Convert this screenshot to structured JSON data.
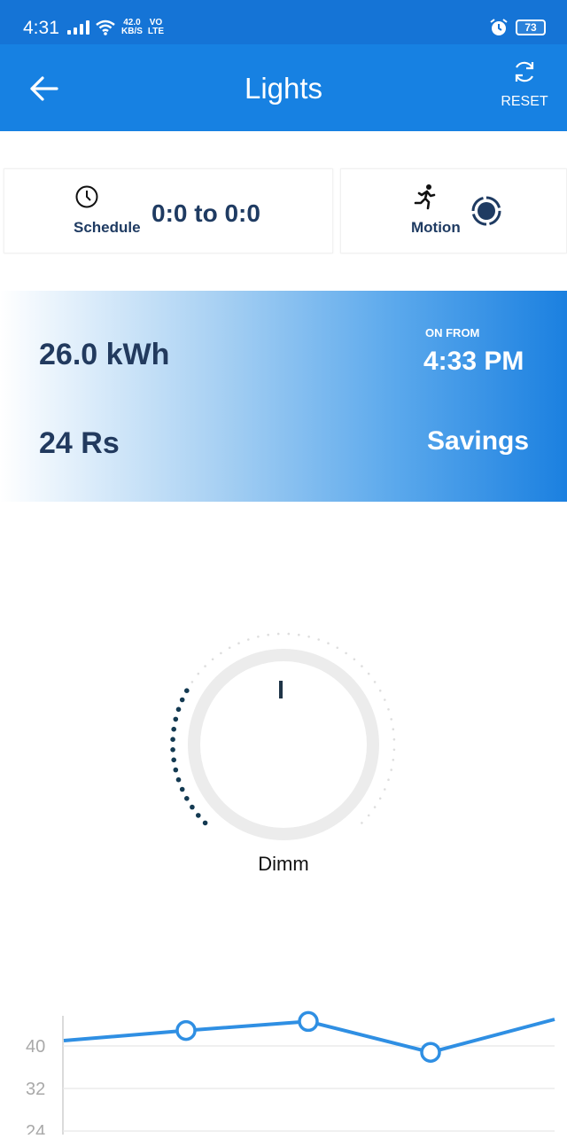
{
  "status_bar": {
    "time": "4:31",
    "net_speed_value": "42.0",
    "net_speed_unit": "KB/S",
    "volte_top": "VO",
    "volte_bottom": "LTE",
    "battery": "73"
  },
  "app_bar": {
    "title": "Lights",
    "reset_label": "RESET"
  },
  "schedule_card": {
    "label": "Schedule",
    "value": "0:0 to 0:0"
  },
  "motion_card": {
    "label": "Motion"
  },
  "energy_panel": {
    "energy": "26.0 kWh",
    "on_from_label": "ON FROM",
    "on_from_time": "4:33 PM",
    "cost": "24 Rs",
    "savings_label": "Savings"
  },
  "dimmer": {
    "label": "Dimm",
    "level_fraction": 0.28
  },
  "colors": {
    "primary": "#1781e2",
    "status_bar": "#1574d6",
    "navy": "#1f3b62",
    "chart_line": "#2f8fe3"
  },
  "chart_data": {
    "type": "line",
    "x": [
      0,
      1,
      2,
      3,
      4,
      5
    ],
    "values": [
      41.0,
      42.9,
      44.6,
      38.8,
      45.0,
      45.0
    ],
    "markers": [
      false,
      true,
      true,
      true,
      false,
      false
    ],
    "y_tick_labels": [
      "40",
      "32",
      "24"
    ],
    "y_ticks": [
      40,
      32,
      24
    ],
    "ylim": [
      20,
      50
    ],
    "grid": true
  }
}
